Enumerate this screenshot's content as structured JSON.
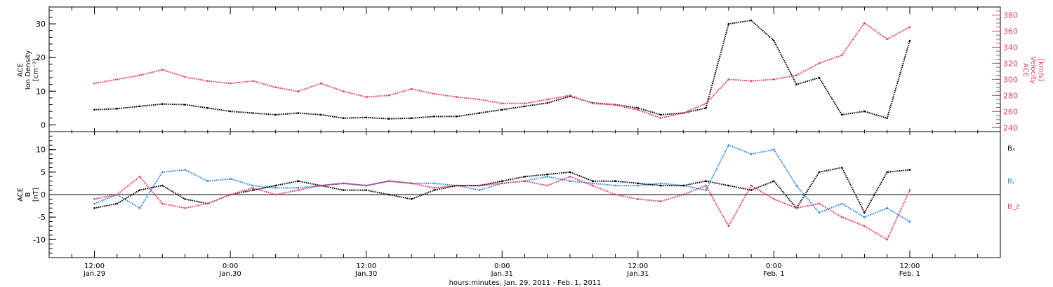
{
  "chart_data": [
    {
      "type": "scatter",
      "panel": "top",
      "ylabel_lines": [
        "ACE",
        "Ion Density",
        "[cm⁻³]"
      ],
      "ylabel_right_lines": [
        "ACE",
        "Velocity",
        "[km/s]"
      ],
      "ylim": [
        -2,
        35
      ],
      "yticks": [
        0,
        10,
        20,
        30
      ],
      "ylim_right": [
        235,
        390
      ],
      "yticks_right": [
        240,
        260,
        280,
        300,
        320,
        340,
        360,
        380
      ],
      "colors": {
        "density": "#000000",
        "velocity": "#e8385f"
      },
      "series": [
        {
          "name": "Ion Density",
          "axis": "left",
          "color": "#000000",
          "x": [
            0,
            3,
            6,
            9,
            12,
            15,
            18,
            21,
            24,
            27,
            30,
            33,
            36,
            39,
            42,
            45,
            48,
            51,
            54,
            57,
            60,
            63,
            66,
            69,
            72,
            75,
            78,
            81,
            84,
            87,
            90,
            93,
            96,
            99,
            102,
            105,
            108
          ],
          "y": [
            4.5,
            4.8,
            5.5,
            6.2,
            6.0,
            5.0,
            4.0,
            3.5,
            3.0,
            3.5,
            3.0,
            2.0,
            2.2,
            1.8,
            2.0,
            2.5,
            2.5,
            3.5,
            4.5,
            5.5,
            6.5,
            8.5,
            6.5,
            6.0,
            5.0,
            3.0,
            3.5,
            5.0,
            30.0,
            31.0,
            25.0,
            12.0,
            14.0,
            3.0,
            4.0,
            2.0,
            25.0
          ]
        },
        {
          "name": "Velocity",
          "axis": "right",
          "color": "#e8385f",
          "x": [
            0,
            3,
            6,
            9,
            12,
            15,
            18,
            21,
            24,
            27,
            30,
            33,
            36,
            39,
            42,
            45,
            48,
            51,
            54,
            57,
            60,
            63,
            66,
            69,
            72,
            75,
            78,
            81,
            84,
            87,
            90,
            93,
            96,
            99,
            102,
            105,
            108
          ],
          "y": [
            295,
            300,
            305,
            312,
            303,
            298,
            295,
            298,
            290,
            285,
            295,
            285,
            278,
            280,
            288,
            282,
            278,
            275,
            270,
            270,
            275,
            280,
            270,
            268,
            262,
            252,
            258,
            270,
            300,
            298,
            300,
            305,
            320,
            330,
            370,
            350,
            365
          ]
        }
      ]
    },
    {
      "type": "scatter",
      "panel": "bottom",
      "ylabel_lines": [
        "ACE",
        "B",
        "[nT]"
      ],
      "ylim": [
        -14,
        14
      ],
      "yticks": [
        -10,
        -5,
        0,
        5,
        10
      ],
      "colors": {
        "bx": "#000000",
        "by": "#2b8ae0",
        "bz": "#e8385f"
      },
      "legend": [
        {
          "name": "Bₓ",
          "color": "#000000"
        },
        {
          "name": "Bᵧ",
          "color": "#2b8ae0"
        },
        {
          "name": "B_z",
          "color": "#e8385f"
        }
      ],
      "series": [
        {
          "name": "Bₓ",
          "color": "#000000",
          "x": [
            0,
            3,
            6,
            9,
            12,
            15,
            18,
            21,
            24,
            27,
            30,
            33,
            36,
            39,
            42,
            45,
            48,
            51,
            54,
            57,
            60,
            63,
            66,
            69,
            72,
            75,
            78,
            81,
            84,
            87,
            90,
            93,
            96,
            99,
            102,
            105,
            108
          ],
          "y": [
            -3,
            -2,
            1,
            2,
            -1,
            -2,
            0,
            1,
            2,
            3,
            2,
            1,
            1,
            0,
            -1,
            1,
            2,
            2,
            3,
            4,
            4.5,
            5,
            3,
            3,
            2.5,
            2,
            2,
            3,
            2,
            1,
            3,
            -3,
            5,
            6,
            -4,
            5,
            5.5
          ]
        },
        {
          "name": "Bᵧ",
          "color": "#2b8ae0",
          "x": [
            0,
            3,
            6,
            9,
            12,
            15,
            18,
            21,
            24,
            27,
            30,
            33,
            36,
            39,
            42,
            45,
            48,
            51,
            54,
            57,
            60,
            63,
            66,
            69,
            72,
            75,
            78,
            81,
            84,
            87,
            90,
            93,
            96,
            99,
            102,
            105,
            108
          ],
          "y": [
            -2,
            0,
            -3,
            5,
            5.5,
            3,
            3.5,
            2,
            1.5,
            1.5,
            2,
            2.5,
            2,
            3,
            2.5,
            2.5,
            2,
            1,
            2.5,
            3,
            4,
            3,
            2.5,
            2,
            2,
            2.5,
            2,
            1,
            11,
            9,
            10,
            2,
            -4,
            -2,
            -5,
            -3,
            -6
          ]
        },
        {
          "name": "B_z",
          "color": "#e8385f",
          "x": [
            0,
            3,
            6,
            9,
            12,
            15,
            18,
            21,
            24,
            27,
            30,
            33,
            36,
            39,
            42,
            45,
            48,
            51,
            54,
            57,
            60,
            63,
            66,
            69,
            72,
            75,
            78,
            81,
            84,
            87,
            90,
            93,
            96,
            99,
            102,
            105,
            108
          ],
          "y": [
            -1,
            0,
            4,
            -2,
            -3,
            -2,
            0,
            1.5,
            0,
            1,
            2,
            2.5,
            2,
            3,
            2.5,
            1.5,
            2,
            2,
            2.5,
            3,
            2,
            4,
            2,
            0,
            -1,
            -1.5,
            0,
            2,
            -7,
            2,
            -1,
            -3,
            -2,
            -5,
            -7,
            -10,
            1
          ]
        }
      ]
    }
  ],
  "time_axis": {
    "xlim": [
      -6,
      120
    ],
    "ticks": [
      {
        "x": 0,
        "top": "12:00",
        "bottom": "Jan.29"
      },
      {
        "x": 18,
        "top": "0:00",
        "bottom": "Jan.30"
      },
      {
        "x": 36,
        "top": "12:00",
        "bottom": "Jan.30"
      },
      {
        "x": 54,
        "top": "0:00",
        "bottom": "Jan.31"
      },
      {
        "x": 72,
        "top": "12:00",
        "bottom": "Jan.31"
      },
      {
        "x": 90,
        "top": "0:00",
        "bottom": "Feb. 1"
      },
      {
        "x": 108,
        "top": "12:00",
        "bottom": "Feb. 1"
      }
    ],
    "xlabel": "hours:minutes, Jan. 29, 2011 - Feb.  1, 2011"
  }
}
